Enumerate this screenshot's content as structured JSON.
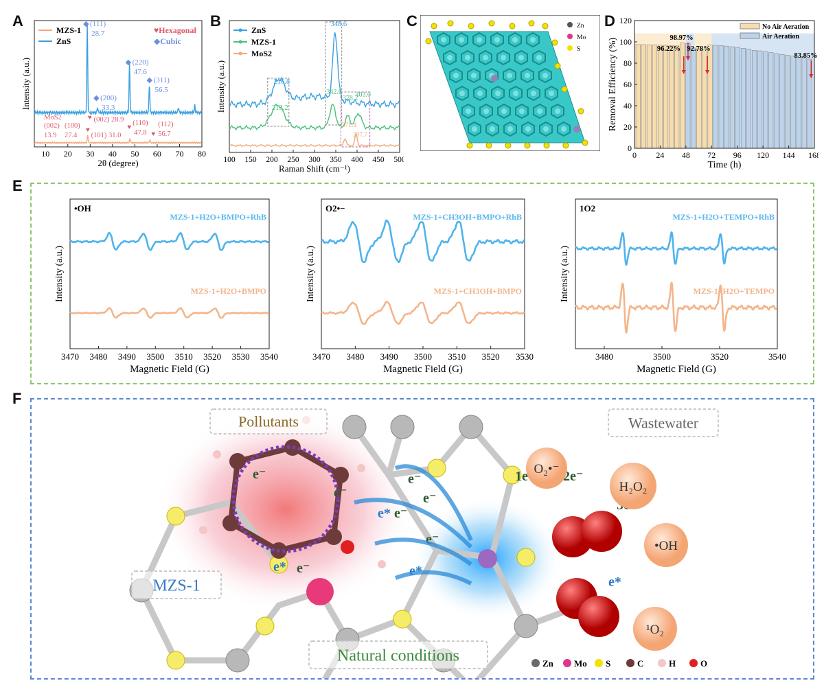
{
  "panel_labels": {
    "a": "A",
    "b": "B",
    "c": "C",
    "d": "D",
    "e": "E",
    "f": "F"
  },
  "colors": {
    "zns": "#3aa0e0",
    "mzs": "#f1a87a",
    "mos2": "#f1a87a",
    "mzs_b": "#4cbf7a",
    "hex": "#e0576b",
    "cubic": "#6a8fe0",
    "epr_blue": "#4fb3ec",
    "epr_orange": "#f3b58c",
    "no_air": "#f7dcae",
    "air": "#bcd3ec"
  },
  "chart_data": [
    {
      "id": "A",
      "type": "line",
      "xlabel": "2θ (degree)",
      "ylabel": "Intensity (a.u.)",
      "xlim": [
        5,
        80
      ],
      "xticks": [
        "10",
        "20",
        "30",
        "40",
        "50",
        "60",
        "70",
        "80"
      ],
      "legend": [
        "MZS-1",
        "ZnS"
      ],
      "legend_right": [
        {
          "symbol": "♥",
          "text": "Hexagonal"
        },
        {
          "symbol": "◆",
          "text": "Cubic"
        }
      ],
      "series": [
        {
          "name": "ZnS",
          "peaks": [
            {
              "x": 28.7,
              "h": 1.0
            },
            {
              "x": 33.3,
              "h": 0.06
            },
            {
              "x": 47.6,
              "h": 0.55
            },
            {
              "x": 56.5,
              "h": 0.32
            },
            {
              "x": 69.5,
              "h": 0.06
            },
            {
              "x": 76.8,
              "h": 0.08
            }
          ]
        },
        {
          "name": "MZS-1",
          "peaks": [
            {
              "x": 28.9,
              "h": 0.22
            },
            {
              "x": 47.8,
              "h": 0.12
            },
            {
              "x": 56.7,
              "h": 0.08
            }
          ]
        }
      ],
      "annotations_cubic": [
        {
          "label": "(111)",
          "value": "28.7",
          "x": 28.7
        },
        {
          "label": "(200)",
          "value": "33.3",
          "x": 33.3
        },
        {
          "label": "(220)",
          "value": "47.6",
          "x": 47.6
        },
        {
          "label": "(311)",
          "value": "56.5",
          "x": 56.5
        }
      ],
      "annotations_hex": {
        "mos2": "MoS2",
        "p002": "(002)",
        "v139": "13.9",
        "p100": "(100)",
        "v274": "27.4",
        "p002b": "(002) 28.9",
        "p101": "(101) 31.0",
        "p110": "(110)",
        "v478": "47.8",
        "p112": "(112)",
        "v567": "56.7"
      }
    },
    {
      "id": "B",
      "type": "line",
      "xlabel": "Raman Shift (cm⁻¹)",
      "ylabel": "Intensity (a.u.)",
      "xlim": [
        100,
        500
      ],
      "xticks": [
        "100",
        "150",
        "200",
        "250",
        "300",
        "350",
        "400",
        "450",
        "500"
      ],
      "legend": [
        "ZnS",
        "MZS-1",
        "MoS2"
      ],
      "annotations": {
        "zns1": "216.8",
        "zns2": "348.6",
        "mzs1": "213.2",
        "mzs2": "342.6",
        "mzs3": "378.2",
        "mzs4": "403.0",
        "mos1": "371.3",
        "mos2": "397.7"
      }
    },
    {
      "id": "C",
      "type": "structure",
      "legend": [
        {
          "name": "Zn",
          "color": "#555555"
        },
        {
          "name": "Mo",
          "color": "#e0368a"
        },
        {
          "name": "S",
          "color": "#f2e200"
        }
      ]
    },
    {
      "id": "D",
      "type": "bar",
      "xlabel": "Time (h)",
      "ylabel": "Removal Efficiency (%)",
      "xlim": [
        0,
        168
      ],
      "ylim": [
        0,
        120
      ],
      "xticks": [
        "0",
        "24",
        "48",
        "72",
        "96",
        "120",
        "144",
        "168"
      ],
      "yticks": [
        "0",
        "20",
        "40",
        "60",
        "80",
        "100",
        "120"
      ],
      "legend": [
        "No Air Aeration",
        "Air Aeration"
      ],
      "values": [
        97.5,
        97.4,
        97.2,
        97.1,
        96.9,
        96.8,
        96.5,
        96.22,
        98.97,
        98.5,
        94.2,
        93.5,
        92.78,
        97.0,
        96.8,
        96.5,
        96.0,
        95.4,
        94.8,
        94.0,
        93.2,
        92.0,
        91.6,
        90.8,
        90.0,
        89.0,
        88.2,
        87.5,
        86.6,
        85.5,
        84.8,
        83.85
      ],
      "annotations": [
        "96.22%",
        "98.97%",
        "92.78%",
        "83.85%"
      ]
    },
    {
      "id": "E1",
      "type": "line",
      "radical": "•OH",
      "xlabel": "Magnetic Field (G)",
      "ylabel": "Intensity (a.u.)",
      "xlim": [
        3470,
        3540
      ],
      "xticks": [
        "3470",
        "3480",
        "3490",
        "3500",
        "3510",
        "3520",
        "3530",
        "3540"
      ],
      "series": [
        {
          "name": "MZS-1+H2O+BMPO+RhB"
        },
        {
          "name": "MZS-1+H2O+BMPO"
        }
      ]
    },
    {
      "id": "E2",
      "type": "line",
      "radical": "O2•−",
      "xlabel": "Magnetic Field (G)",
      "ylabel": "Intensity (a.u.)",
      "xlim": [
        3470,
        3530
      ],
      "xticks": [
        "3470",
        "3480",
        "3490",
        "3500",
        "3510",
        "3520",
        "3530"
      ],
      "series": [
        {
          "name": "MZS-1+CH3OH+BMPO+RhB"
        },
        {
          "name": "MZS-1+CH3OH+BMPO"
        }
      ]
    },
    {
      "id": "E3",
      "type": "line",
      "radical": "1O2",
      "xlabel": "Magnetic Field (G)",
      "ylabel": "Intensity (a.u.)",
      "xlim": [
        3470,
        3540
      ],
      "xticks": [
        "3480",
        "3500",
        "3520",
        "3540"
      ],
      "series": [
        {
          "name": "MZS-1+H2O+TEMPO+RhB"
        },
        {
          "name": "MZS-1+H2O+TEMPO"
        }
      ]
    }
  ],
  "scheme": {
    "pollutants": "Pollutants",
    "wastewater": "Wastewater",
    "mzs1": "MZS-1",
    "natural": "Natural conditions",
    "e_minus": "e⁻",
    "e_star": "e*",
    "one_e": "1e⁻",
    "two_e": "2e⁻",
    "three_e": "3e⁻",
    "o2": "O₂•⁻",
    "h2o2": "H₂O₂",
    "oh": "•OH",
    "singlet": "¹O₂",
    "legend": [
      {
        "name": "Zn",
        "color": "#6a6a6a"
      },
      {
        "name": "Mo",
        "color": "#e0368a"
      },
      {
        "name": "S",
        "color": "#f2e200"
      },
      {
        "name": "C",
        "color": "#6e3b3b"
      },
      {
        "name": "H",
        "color": "#f4c6c6"
      },
      {
        "name": "O",
        "color": "#e02020"
      }
    ]
  }
}
